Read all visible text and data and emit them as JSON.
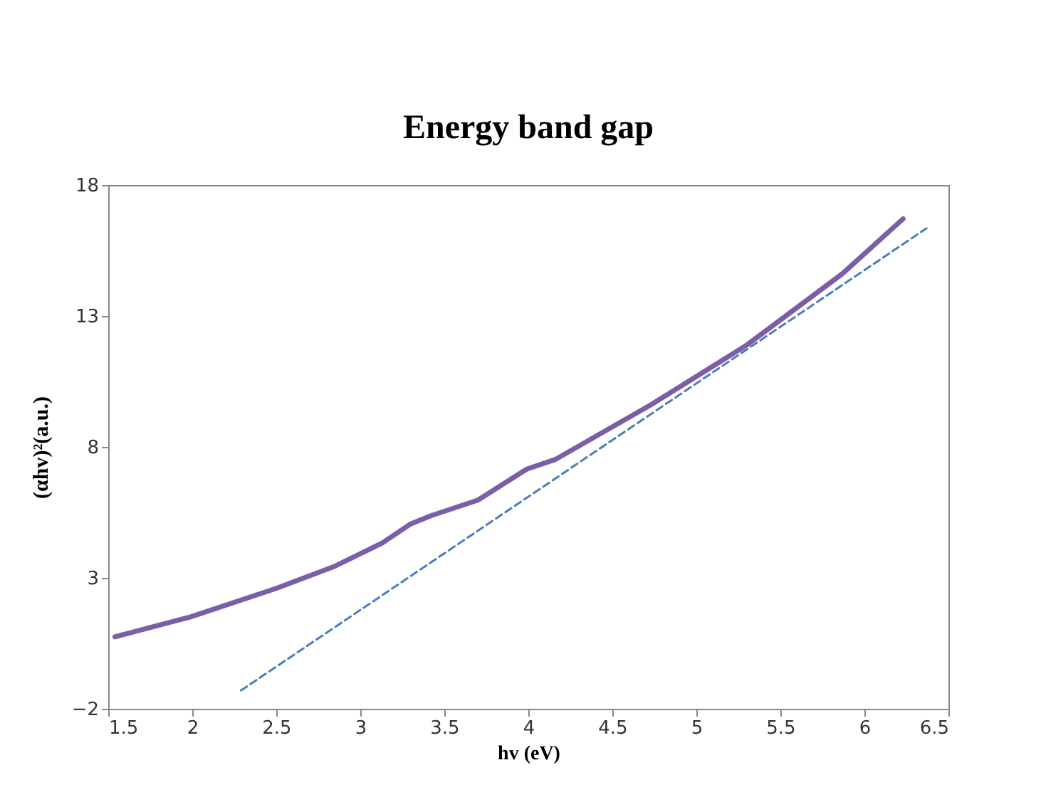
{
  "chart_data": {
    "type": "line",
    "title": "Energy band gap",
    "xlabel": "hv (eV)",
    "ylabel": "(αhv)²(a.u.)",
    "xlim": [
      1.5,
      6.5
    ],
    "xticks": [
      1.5,
      2,
      2.5,
      3,
      3.5,
      4,
      4.5,
      5,
      5.5,
      6,
      6.5
    ],
    "ylim": [
      -2,
      18
    ],
    "yticks": [
      -2,
      3,
      8,
      13,
      18
    ],
    "grid": false,
    "series": [
      {
        "color": "#7b5ea7",
        "line_style": "solid",
        "x": [
          1.54,
          1.99,
          2.5,
          2.84,
          3.13,
          3.3,
          3.42,
          3.7,
          3.99,
          4.16,
          4.73,
          5.3,
          5.87,
          6.23
        ],
        "values": [
          0.75,
          1.51,
          2.6,
          3.42,
          4.33,
          5.06,
          5.37,
          5.97,
          7.15,
          7.52,
          9.61,
          11.89,
          14.62,
          16.71
        ]
      },
      {
        "color": "#4a7ebb",
        "line_style": "dashed",
        "x": [
          2.29,
          6.37
        ],
        "values": [
          -1.3,
          16.35
        ]
      }
    ]
  }
}
